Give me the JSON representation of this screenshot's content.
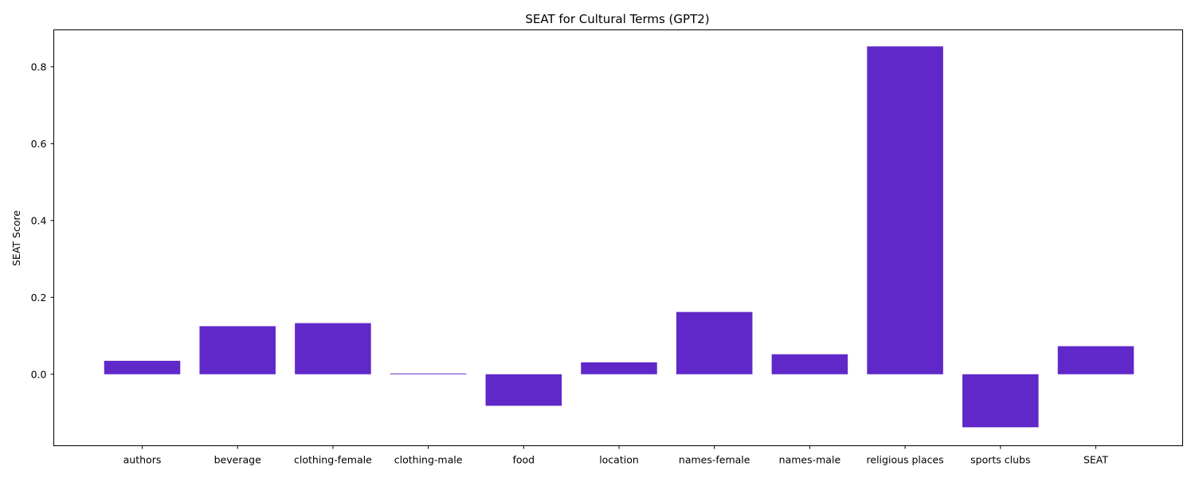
{
  "chart_data": {
    "type": "bar",
    "title": "SEAT for Cultural Terms (GPT2)",
    "xlabel": "",
    "ylabel": "SEAT Score",
    "categories": [
      "authors",
      "beverage",
      "clothing-female",
      "clothing-male",
      "food",
      "location",
      "names-female",
      "names-male",
      "religious places",
      "sports clubs",
      "SEAT"
    ],
    "values": [
      0.035,
      0.125,
      0.133,
      0.002,
      -0.082,
      0.031,
      0.162,
      0.052,
      0.853,
      -0.138,
      0.073
    ],
    "ylim": [
      -0.186,
      0.896
    ],
    "yticks": [
      0.0,
      0.2,
      0.4,
      0.6,
      0.8
    ],
    "ytick_labels": [
      "0.0",
      "0.2",
      "0.4",
      "0.6",
      "0.8"
    ],
    "bar_color": "#6027c9",
    "grid": false,
    "legend": "none"
  }
}
